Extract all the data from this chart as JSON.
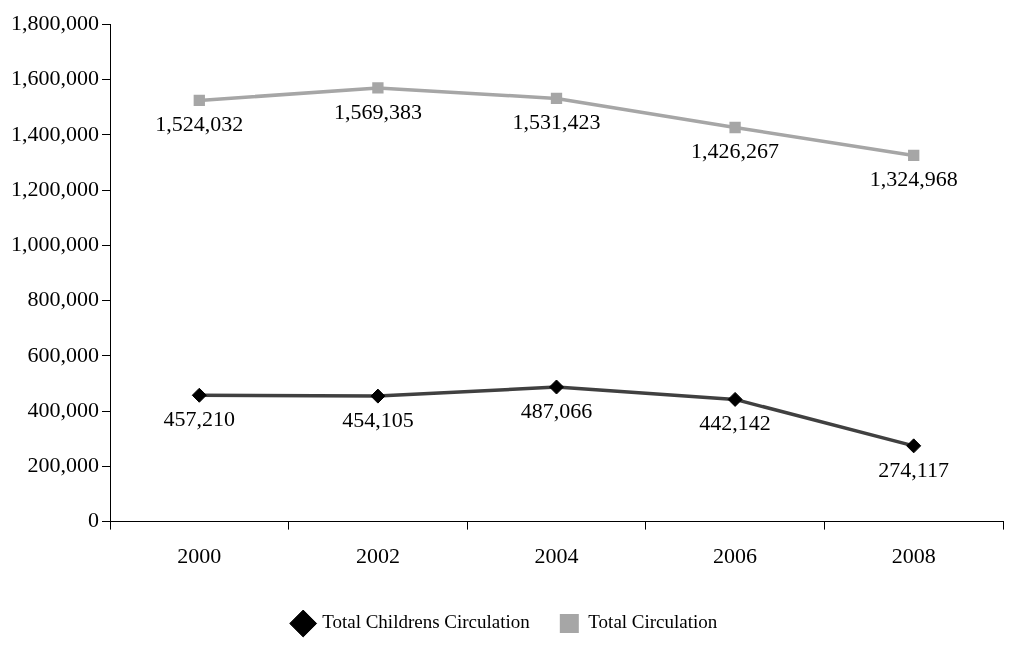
{
  "chart_data": {
    "type": "line",
    "categories": [
      "2000",
      "2002",
      "2004",
      "2006",
      "2008"
    ],
    "series": [
      {
        "name": "Total Childrens Circulation",
        "color": "#404040",
        "marker": "diamond",
        "values": [
          457210,
          454105,
          487066,
          442142,
          274117
        ],
        "value_labels": [
          "457,210",
          "454,105",
          "487,066",
          "442,142",
          "274,117"
        ]
      },
      {
        "name": "Total Circulation",
        "color": "#a6a6a6",
        "marker": "square",
        "values": [
          1524032,
          1569383,
          1531423,
          1426267,
          1324968
        ],
        "value_labels": [
          "1,524,032",
          "1,569,383",
          "1,531,423",
          "1,426,267",
          "1,324,968"
        ]
      }
    ],
    "ylim": [
      0,
      1800000
    ],
    "yticks": [
      0,
      {
        "value": 200000,
        "label": "200,000"
      },
      {
        "value": 400000,
        "label": "400,000"
      },
      {
        "value": 600000,
        "label": "600,000"
      },
      {
        "value": 800000,
        "label": "800,000"
      },
      {
        "value": 1000000,
        "label": "1,000,000"
      },
      {
        "value": 1200000,
        "label": "1,200,000"
      },
      {
        "value": 1400000,
        "label": "1,400,000"
      },
      {
        "value": 1600000,
        "label": "1,600,000"
      },
      {
        "value": 1800000,
        "label": "1,800,000"
      }
    ],
    "grid": false,
    "legend": "bottom"
  }
}
